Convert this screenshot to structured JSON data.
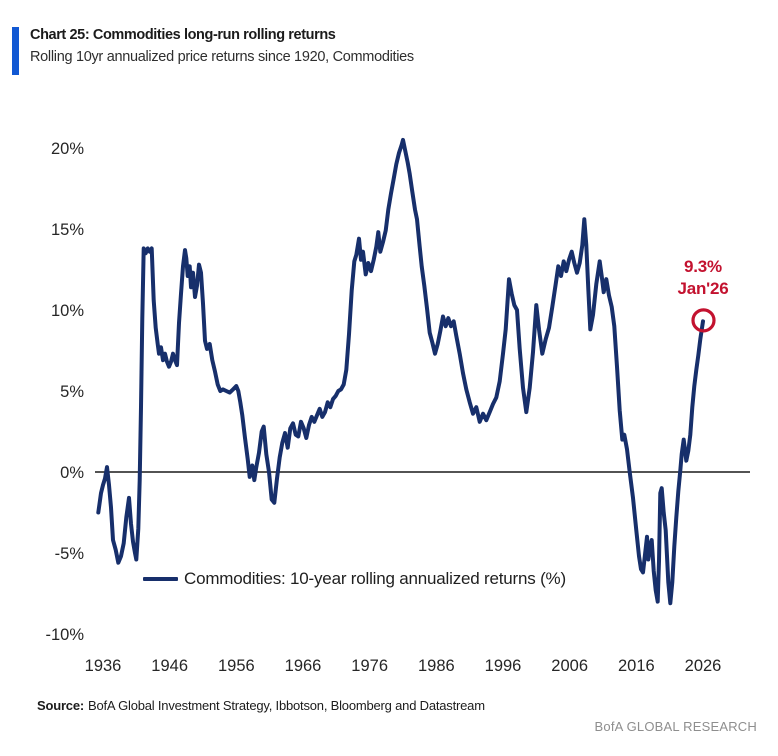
{
  "header": {
    "title": "Chart 25: Commodities long-run rolling returns",
    "subtitle": "Rolling 10yr annualized price returns since 1920, Commodities",
    "accent_color": "#1158d3"
  },
  "legend": {
    "label": "Commodities: 10-year rolling annualized returns (%)"
  },
  "annotation": {
    "value": "9.3%",
    "date": "Jan'26"
  },
  "footer": {
    "source_label": "Source:",
    "source_text": "BofA Global Investment Strategy, Ibbotson, Bloomberg and Datastream",
    "brand": "BofA GLOBAL RESEARCH"
  },
  "chart_data": {
    "type": "line",
    "title": "Chart 25: Commodities long-run rolling returns",
    "subtitle": "Rolling 10yr annualized price returns since 1920, Commodities",
    "grid": false,
    "zero_line": true,
    "colors": {
      "line": "#172f6b",
      "annotation": "#c3122f",
      "axis_text": "#262626",
      "zero_line": "#1a1a1a"
    },
    "x_axis": {
      "ticks": [
        1936,
        1946,
        1956,
        1966,
        1976,
        1986,
        1996,
        2006,
        2016,
        2026
      ],
      "range": [
        1934.5,
        2033
      ]
    },
    "y_axis": {
      "ticks": [
        {
          "value": 20,
          "label": "20%"
        },
        {
          "value": 15,
          "label": "15%"
        },
        {
          "value": 10,
          "label": "10%"
        },
        {
          "value": 5,
          "label": "5%"
        },
        {
          "value": 0,
          "label": "0%"
        },
        {
          "value": -5,
          "label": "-5%"
        },
        {
          "value": -10,
          "label": "-10%"
        }
      ],
      "range": [
        -11.5,
        21.5
      ],
      "unit": "%"
    },
    "legend_position": "inside-bottom",
    "annotation": {
      "x": 2026.0,
      "y": 9.3,
      "value_label": "9.3%",
      "date_label": "Jan'26",
      "marker": "circle"
    },
    "series": [
      {
        "name": "Commodities: 10-year rolling annualized returns (%)",
        "color": "#172f6b",
        "points": [
          [
            1935.3,
            -2.5
          ],
          [
            1935.7,
            -1.3
          ],
          [
            1936.0,
            -0.8
          ],
          [
            1936.3,
            -0.4
          ],
          [
            1936.6,
            0.3
          ],
          [
            1936.9,
            -0.8
          ],
          [
            1937.2,
            -2.2
          ],
          [
            1937.5,
            -4.2
          ],
          [
            1937.9,
            -4.8
          ],
          [
            1938.3,
            -5.6
          ],
          [
            1938.7,
            -5.2
          ],
          [
            1939.1,
            -4.4
          ],
          [
            1939.5,
            -2.8
          ],
          [
            1939.9,
            -1.6
          ],
          [
            1940.2,
            -3.2
          ],
          [
            1940.5,
            -4.3
          ],
          [
            1940.8,
            -5.0
          ],
          [
            1941.0,
            -5.4
          ],
          [
            1941.3,
            -3.5
          ],
          [
            1941.5,
            -0.5
          ],
          [
            1941.7,
            4.0
          ],
          [
            1941.9,
            9.5
          ],
          [
            1942.1,
            13.8
          ],
          [
            1942.4,
            13.5
          ],
          [
            1942.7,
            13.8
          ],
          [
            1943.0,
            13.6
          ],
          [
            1943.3,
            13.8
          ],
          [
            1943.6,
            10.6
          ],
          [
            1943.9,
            8.9
          ],
          [
            1944.2,
            7.9
          ],
          [
            1944.4,
            7.3
          ],
          [
            1944.7,
            7.7
          ],
          [
            1945.0,
            6.9
          ],
          [
            1945.3,
            7.3
          ],
          [
            1945.6,
            6.8
          ],
          [
            1945.9,
            6.5
          ],
          [
            1946.2,
            6.8
          ],
          [
            1946.5,
            7.3
          ],
          [
            1946.8,
            6.9
          ],
          [
            1947.1,
            6.6
          ],
          [
            1947.4,
            9.2
          ],
          [
            1947.7,
            11.0
          ],
          [
            1948.0,
            12.7
          ],
          [
            1948.3,
            13.7
          ],
          [
            1948.5,
            13.2
          ],
          [
            1948.7,
            12.1
          ],
          [
            1949.0,
            12.7
          ],
          [
            1949.2,
            11.4
          ],
          [
            1949.5,
            12.3
          ],
          [
            1949.8,
            10.8
          ],
          [
            1950.1,
            11.5
          ],
          [
            1950.4,
            12.8
          ],
          [
            1950.7,
            12.3
          ],
          [
            1951.0,
            10.4
          ],
          [
            1951.3,
            8.1
          ],
          [
            1951.6,
            7.6
          ],
          [
            1952.0,
            7.9
          ],
          [
            1952.4,
            6.9
          ],
          [
            1952.8,
            6.2
          ],
          [
            1953.2,
            5.4
          ],
          [
            1953.6,
            5.0
          ],
          [
            1954.0,
            5.1
          ],
          [
            1954.5,
            5.0
          ],
          [
            1955.0,
            4.9
          ],
          [
            1955.5,
            5.1
          ],
          [
            1956.0,
            5.3
          ],
          [
            1956.3,
            5.0
          ],
          [
            1956.6,
            4.3
          ],
          [
            1956.9,
            3.5
          ],
          [
            1957.3,
            2.1
          ],
          [
            1957.7,
            0.8
          ],
          [
            1958.0,
            -0.3
          ],
          [
            1958.4,
            0.4
          ],
          [
            1958.7,
            -0.5
          ],
          [
            1959.0,
            0.3
          ],
          [
            1959.4,
            1.2
          ],
          [
            1959.8,
            2.5
          ],
          [
            1960.1,
            2.8
          ],
          [
            1960.5,
            1.1
          ],
          [
            1960.9,
            0.0
          ],
          [
            1961.3,
            -1.7
          ],
          [
            1961.7,
            -1.9
          ],
          [
            1962.1,
            -0.4
          ],
          [
            1962.5,
            0.9
          ],
          [
            1962.9,
            1.8
          ],
          [
            1963.3,
            2.4
          ],
          [
            1963.7,
            1.5
          ],
          [
            1964.1,
            2.7
          ],
          [
            1964.5,
            3.0
          ],
          [
            1964.9,
            2.3
          ],
          [
            1965.3,
            2.2
          ],
          [
            1965.7,
            3.1
          ],
          [
            1966.1,
            2.7
          ],
          [
            1966.5,
            2.1
          ],
          [
            1966.9,
            2.9
          ],
          [
            1967.3,
            3.4
          ],
          [
            1967.7,
            3.1
          ],
          [
            1968.1,
            3.5
          ],
          [
            1968.5,
            3.9
          ],
          [
            1968.9,
            3.4
          ],
          [
            1969.3,
            3.7
          ],
          [
            1969.7,
            4.3
          ],
          [
            1970.1,
            4.0
          ],
          [
            1970.5,
            4.5
          ],
          [
            1970.9,
            4.7
          ],
          [
            1971.3,
            5.0
          ],
          [
            1971.7,
            5.1
          ],
          [
            1972.1,
            5.4
          ],
          [
            1972.5,
            6.3
          ],
          [
            1972.9,
            8.5
          ],
          [
            1973.3,
            11.2
          ],
          [
            1973.7,
            13.0
          ],
          [
            1974.0,
            13.4
          ],
          [
            1974.4,
            14.4
          ],
          [
            1974.7,
            13.1
          ],
          [
            1975.0,
            13.6
          ],
          [
            1975.4,
            12.2
          ],
          [
            1975.8,
            12.9
          ],
          [
            1976.2,
            12.4
          ],
          [
            1976.6,
            13.1
          ],
          [
            1977.0,
            13.9
          ],
          [
            1977.3,
            14.8
          ],
          [
            1977.6,
            13.6
          ],
          [
            1978.0,
            14.2
          ],
          [
            1978.4,
            14.9
          ],
          [
            1978.8,
            16.2
          ],
          [
            1979.2,
            17.2
          ],
          [
            1979.6,
            18.1
          ],
          [
            1980.0,
            19.0
          ],
          [
            1980.4,
            19.7
          ],
          [
            1980.8,
            20.2
          ],
          [
            1981.0,
            20.5
          ],
          [
            1981.3,
            19.9
          ],
          [
            1981.7,
            19.1
          ],
          [
            1982.0,
            18.4
          ],
          [
            1982.4,
            17.3
          ],
          [
            1982.8,
            16.2
          ],
          [
            1983.1,
            15.6
          ],
          [
            1983.5,
            13.9
          ],
          [
            1983.8,
            12.7
          ],
          [
            1984.2,
            11.5
          ],
          [
            1984.6,
            10.1
          ],
          [
            1985.0,
            8.6
          ],
          [
            1985.4,
            8.0
          ],
          [
            1985.8,
            7.3
          ],
          [
            1986.2,
            7.9
          ],
          [
            1986.6,
            8.7
          ],
          [
            1987.0,
            9.6
          ],
          [
            1987.4,
            9.0
          ],
          [
            1987.8,
            9.5
          ],
          [
            1988.2,
            9.0
          ],
          [
            1988.6,
            9.3
          ],
          [
            1989.0,
            8.4
          ],
          [
            1989.5,
            7.3
          ],
          [
            1990.0,
            6.1
          ],
          [
            1990.5,
            5.1
          ],
          [
            1991.0,
            4.3
          ],
          [
            1991.5,
            3.6
          ],
          [
            1992.0,
            4.0
          ],
          [
            1992.5,
            3.1
          ],
          [
            1993.0,
            3.6
          ],
          [
            1993.5,
            3.2
          ],
          [
            1994.0,
            3.7
          ],
          [
            1994.5,
            4.2
          ],
          [
            1995.0,
            4.6
          ],
          [
            1995.5,
            5.6
          ],
          [
            1996.0,
            7.3
          ],
          [
            1996.4,
            8.8
          ],
          [
            1996.9,
            11.9
          ],
          [
            1997.3,
            11.0
          ],
          [
            1997.7,
            10.3
          ],
          [
            1998.1,
            10.0
          ],
          [
            1998.5,
            7.6
          ],
          [
            1999.0,
            5.2
          ],
          [
            1999.5,
            3.7
          ],
          [
            2000.0,
            5.2
          ],
          [
            2000.5,
            7.4
          ],
          [
            2001.0,
            10.3
          ],
          [
            2001.4,
            8.8
          ],
          [
            2001.9,
            7.3
          ],
          [
            2002.4,
            8.2
          ],
          [
            2002.9,
            8.9
          ],
          [
            2003.4,
            10.2
          ],
          [
            2003.9,
            11.6
          ],
          [
            2004.3,
            12.7
          ],
          [
            2004.7,
            12.1
          ],
          [
            2005.1,
            13.0
          ],
          [
            2005.5,
            12.4
          ],
          [
            2005.9,
            13.1
          ],
          [
            2006.3,
            13.6
          ],
          [
            2006.7,
            12.9
          ],
          [
            2007.1,
            12.3
          ],
          [
            2007.5,
            12.9
          ],
          [
            2007.9,
            14.0
          ],
          [
            2008.2,
            15.6
          ],
          [
            2008.5,
            14.0
          ],
          [
            2008.8,
            11.3
          ],
          [
            2009.1,
            8.8
          ],
          [
            2009.5,
            9.7
          ],
          [
            2010.0,
            11.6
          ],
          [
            2010.5,
            13.0
          ],
          [
            2010.8,
            12.1
          ],
          [
            2011.1,
            11.1
          ],
          [
            2011.5,
            11.9
          ],
          [
            2011.9,
            10.9
          ],
          [
            2012.3,
            10.2
          ],
          [
            2012.7,
            9.0
          ],
          [
            2013.1,
            6.5
          ],
          [
            2013.5,
            3.8
          ],
          [
            2013.9,
            2.0
          ],
          [
            2014.2,
            2.3
          ],
          [
            2014.6,
            1.4
          ],
          [
            2015.0,
            0.0
          ],
          [
            2015.5,
            -1.6
          ],
          [
            2016.0,
            -3.6
          ],
          [
            2016.4,
            -5.2
          ],
          [
            2016.7,
            -6.0
          ],
          [
            2017.0,
            -6.2
          ],
          [
            2017.3,
            -5.1
          ],
          [
            2017.6,
            -4.0
          ],
          [
            2017.8,
            -5.4
          ],
          [
            2018.1,
            -4.5
          ],
          [
            2018.3,
            -4.2
          ],
          [
            2018.6,
            -6.1
          ],
          [
            2018.9,
            -7.3
          ],
          [
            2019.2,
            -8.0
          ],
          [
            2019.4,
            -5.5
          ],
          [
            2019.6,
            -1.3
          ],
          [
            2019.8,
            -1.0
          ],
          [
            2020.1,
            -2.5
          ],
          [
            2020.4,
            -3.6
          ],
          [
            2020.6,
            -5.2
          ],
          [
            2020.8,
            -6.8
          ],
          [
            2021.1,
            -8.1
          ],
          [
            2021.4,
            -6.8
          ],
          [
            2021.7,
            -4.6
          ],
          [
            2022.0,
            -2.8
          ],
          [
            2022.3,
            -1.2
          ],
          [
            2022.6,
            0.1
          ],
          [
            2022.8,
            1.1
          ],
          [
            2023.1,
            2.0
          ],
          [
            2023.5,
            0.7
          ],
          [
            2023.8,
            1.3
          ],
          [
            2024.1,
            2.3
          ],
          [
            2024.4,
            4.0
          ],
          [
            2024.7,
            5.3
          ],
          [
            2025.0,
            6.3
          ],
          [
            2025.3,
            7.2
          ],
          [
            2025.6,
            8.2
          ],
          [
            2026.0,
            9.3
          ]
        ]
      }
    ]
  }
}
